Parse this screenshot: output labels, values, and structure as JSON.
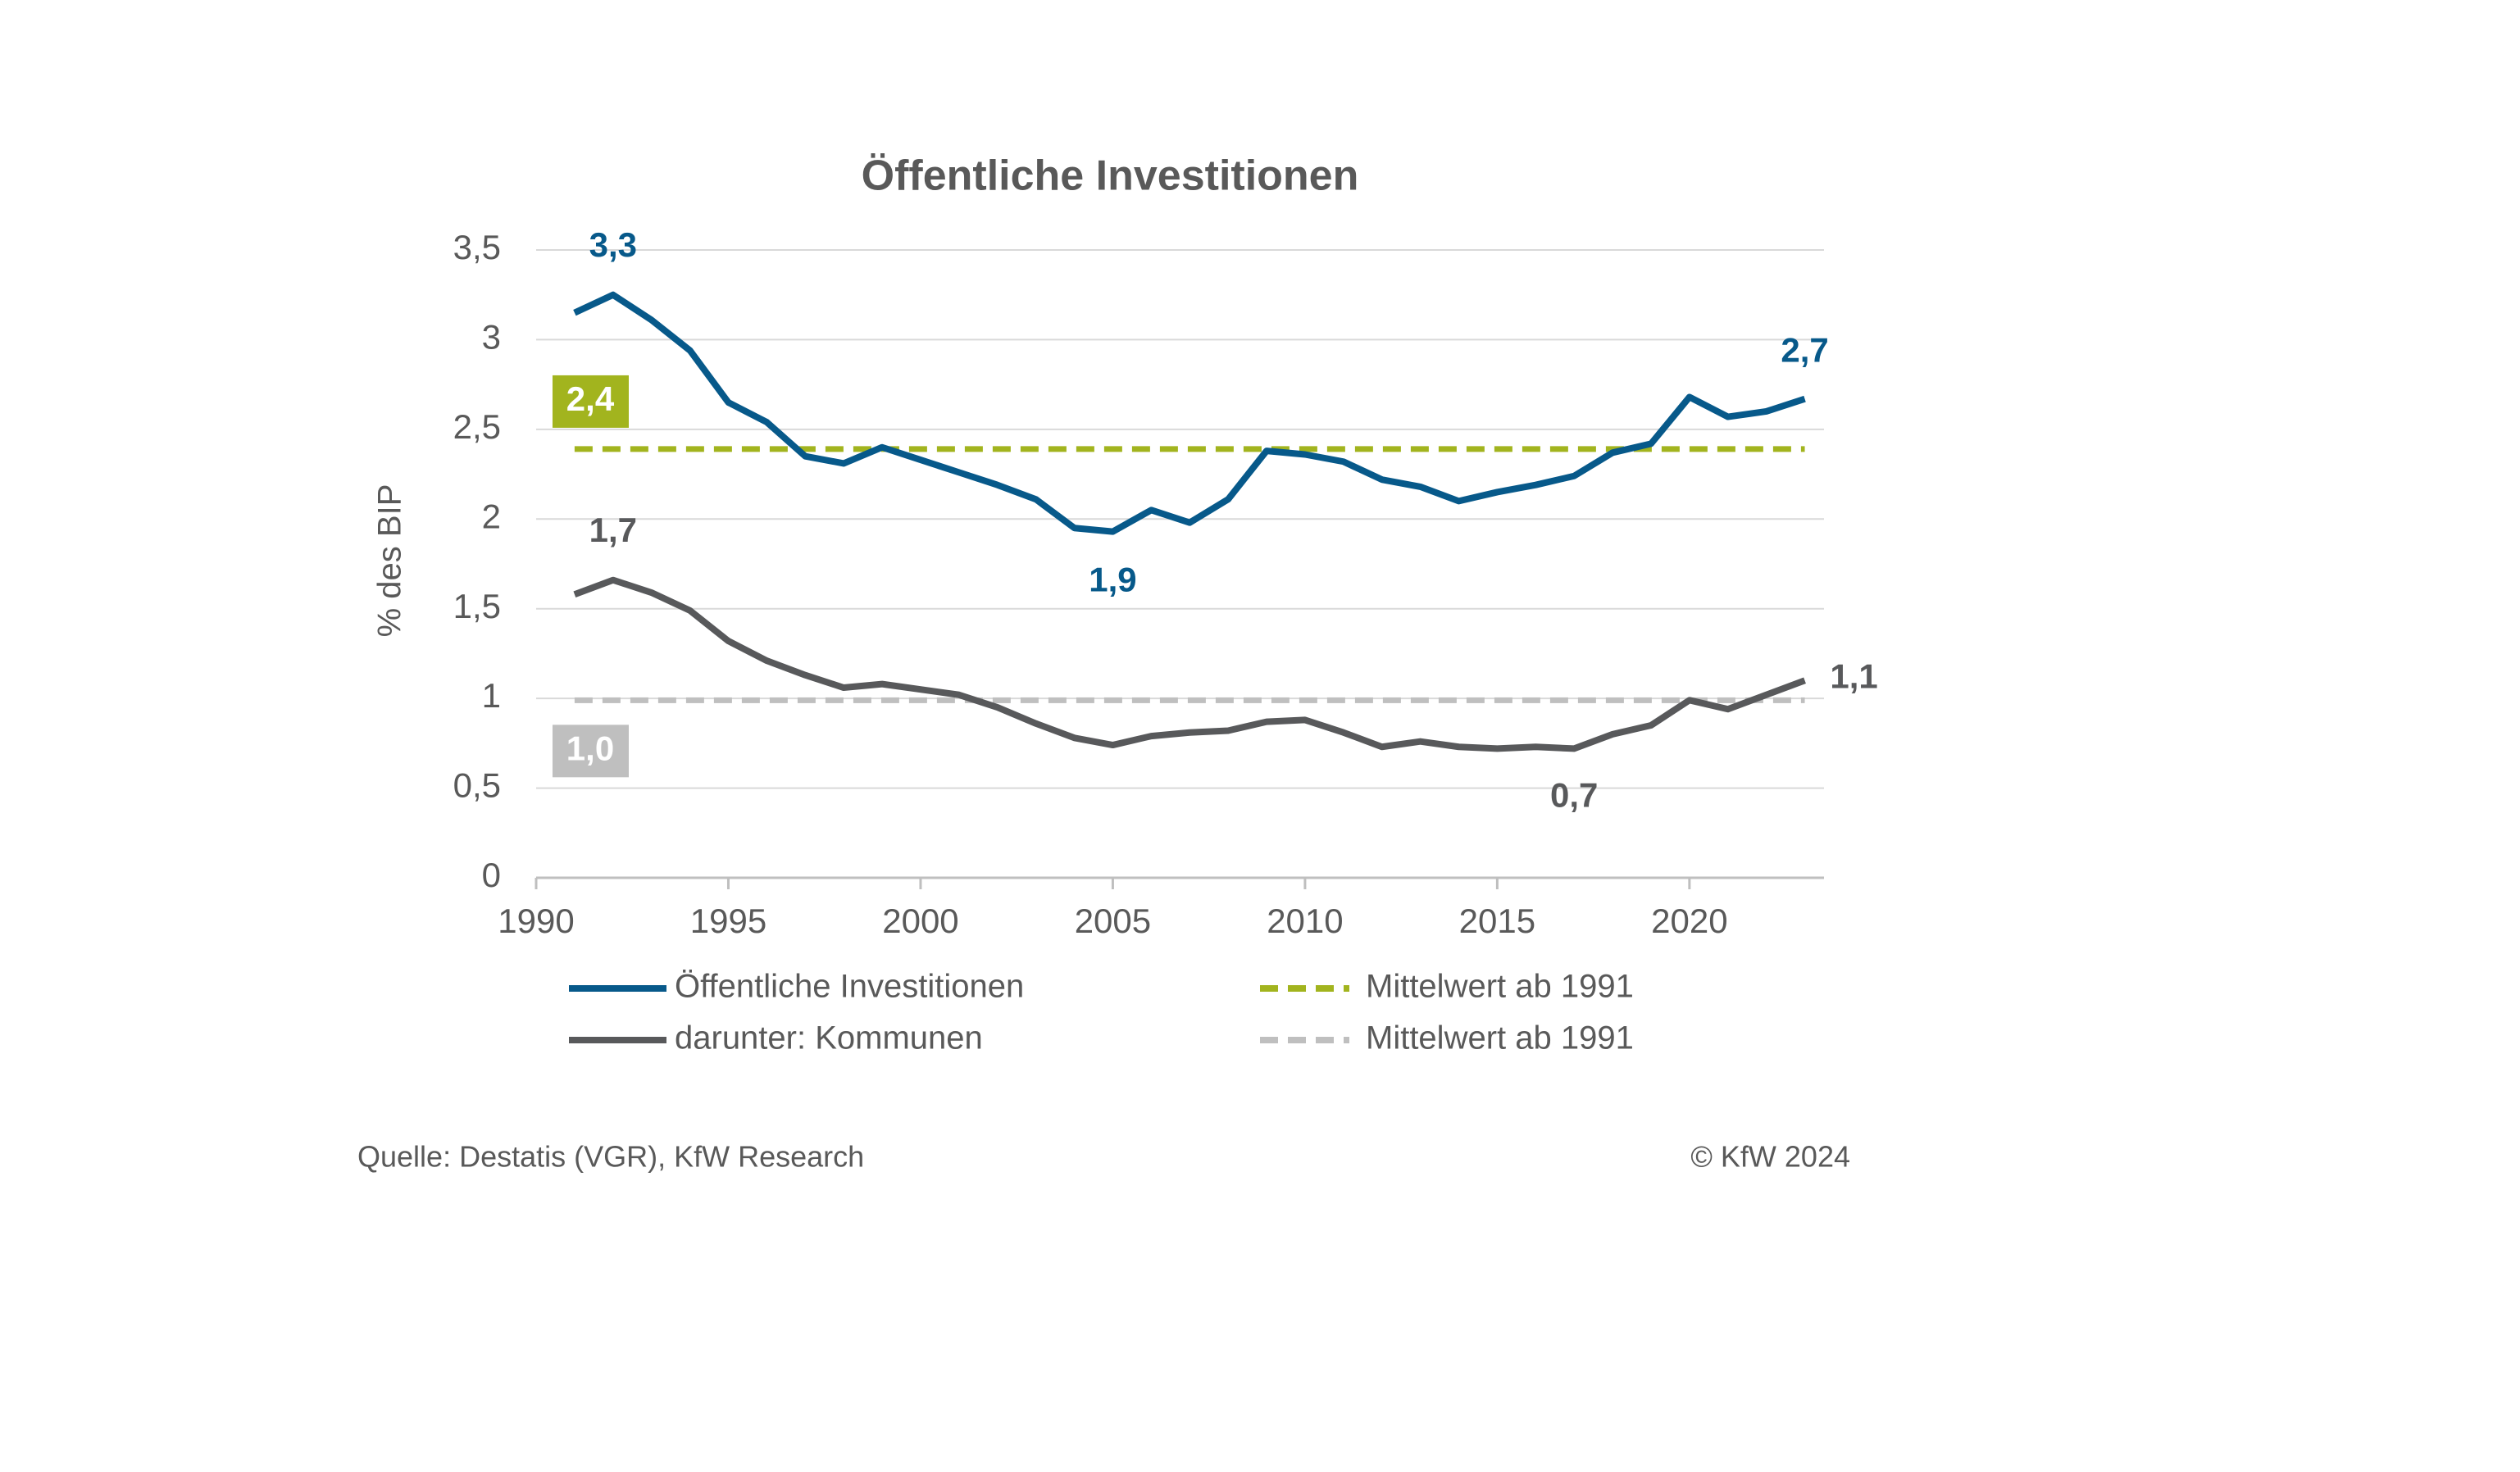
{
  "chart_data": {
    "type": "line",
    "title": "Öffentliche Investitionen",
    "y_label": "% des BIP",
    "x": [
      1991,
      1992,
      1993,
      1994,
      1995,
      1996,
      1997,
      1998,
      1999,
      2000,
      2001,
      2002,
      2003,
      2004,
      2005,
      2006,
      2007,
      2008,
      2009,
      2010,
      2011,
      2012,
      2013,
      2014,
      2015,
      2016,
      2017,
      2018,
      2019,
      2020,
      2021,
      2022,
      2023
    ],
    "series": [
      {
        "name": "Öffentliche Investitionen",
        "color": "#07598a",
        "values": [
          3.15,
          3.25,
          3.11,
          2.94,
          2.65,
          2.54,
          2.35,
          2.31,
          2.4,
          2.33,
          2.26,
          2.19,
          2.11,
          1.95,
          1.93,
          2.05,
          1.98,
          2.11,
          2.38,
          2.36,
          2.32,
          2.22,
          2.18,
          2.1,
          2.15,
          2.19,
          2.24,
          2.37,
          2.42,
          2.68,
          2.57,
          2.6,
          2.67
        ],
        "value_labels": [
          null,
          "3,3",
          null,
          null,
          null,
          null,
          null,
          null,
          null,
          null,
          null,
          null,
          null,
          null,
          "1,9",
          null,
          null,
          null,
          null,
          null,
          null,
          null,
          null,
          null,
          null,
          null,
          null,
          null,
          null,
          null,
          null,
          null,
          "2,7"
        ]
      },
      {
        "name": "darunter: Kommunen",
        "color": "#58595b",
        "values": [
          1.58,
          1.66,
          1.59,
          1.49,
          1.32,
          1.21,
          1.13,
          1.06,
          1.08,
          1.05,
          1.02,
          0.95,
          0.86,
          0.78,
          0.74,
          0.79,
          0.81,
          0.82,
          0.87,
          0.88,
          0.81,
          0.73,
          0.76,
          0.73,
          0.72,
          0.73,
          0.72,
          0.8,
          0.85,
          0.99,
          0.94,
          1.02,
          1.1
        ],
        "value_labels": [
          null,
          "1,7",
          null,
          null,
          null,
          null,
          null,
          null,
          null,
          null,
          null,
          null,
          null,
          null,
          null,
          null,
          null,
          null,
          null,
          null,
          null,
          null,
          null,
          null,
          null,
          null,
          "0,7",
          null,
          null,
          null,
          null,
          null,
          "1,1"
        ]
      }
    ],
    "reference_lines": [
      {
        "name": "Mittelwert ab 1991",
        "color": "#a2b41e",
        "value": 2.39,
        "value_label": "2,4"
      },
      {
        "name": "Mittelwert ab 1991",
        "color": "#bfbfbf",
        "value": 0.99,
        "value_label": "1,0"
      }
    ],
    "xlim": [
      1990,
      2023.5
    ],
    "xticks": [
      1990,
      1995,
      2000,
      2005,
      2010,
      2015,
      2020
    ],
    "ylim": [
      0,
      3.5
    ],
    "yticks": [
      0,
      {
        "value": 0.5,
        "label": "0,5"
      },
      1,
      {
        "value": 1.5,
        "label": "1,5"
      },
      2,
      {
        "value": 2.5,
        "label": "2,5"
      },
      3,
      {
        "value": 3.5,
        "label": "3,5"
      }
    ],
    "grid": true,
    "source": "Quelle: Destatis (VGR), KfW Research",
    "copyright": "© KfW 2024"
  }
}
